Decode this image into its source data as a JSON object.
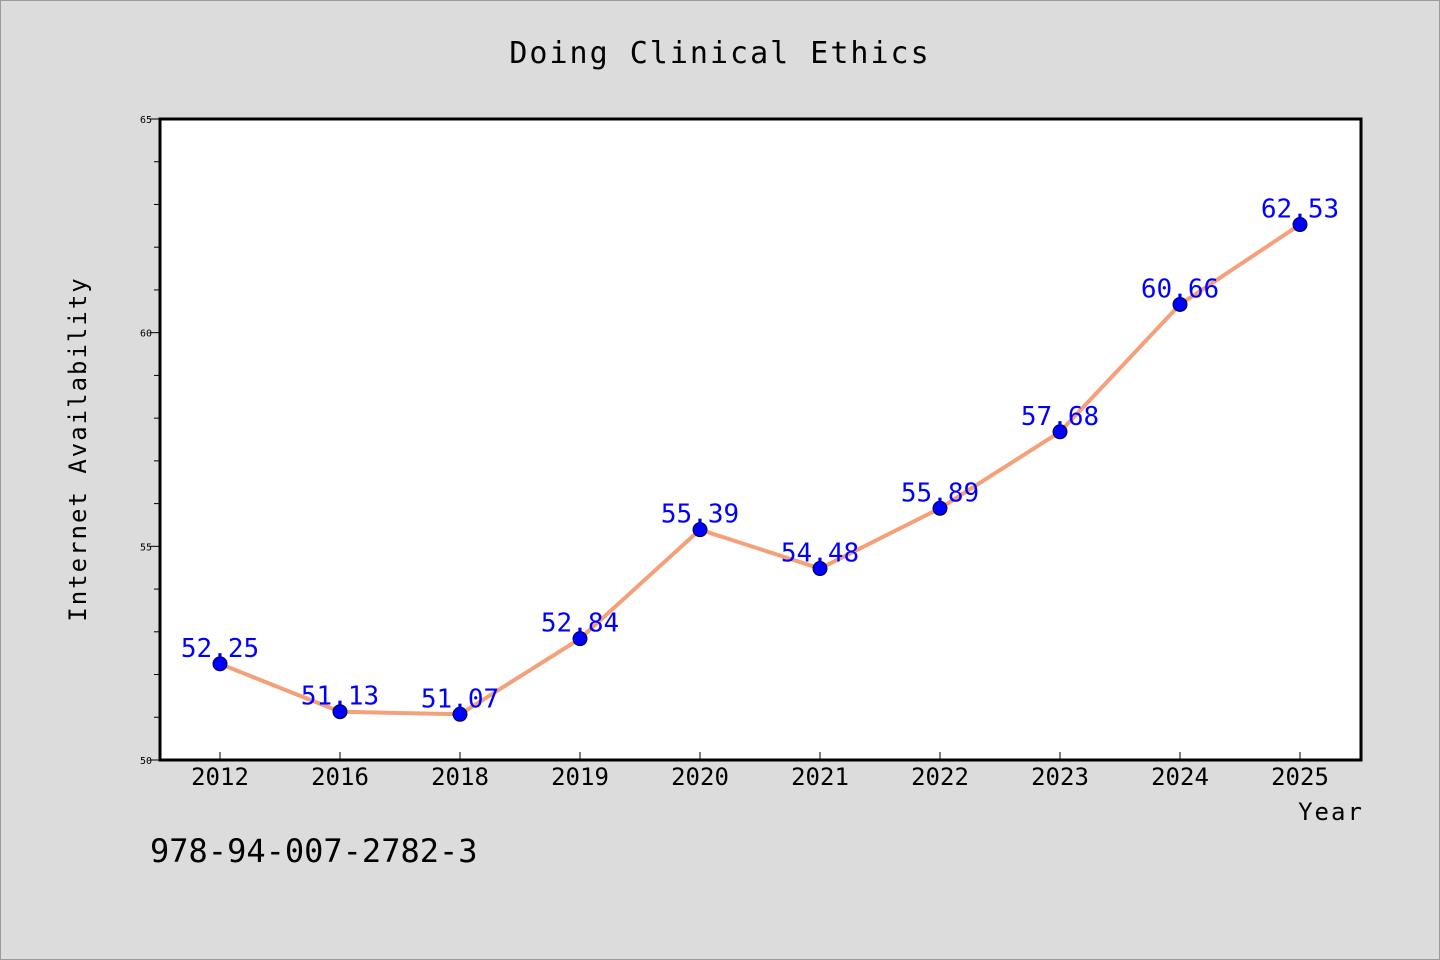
{
  "chart_data": {
    "type": "line",
    "title": "Doing Clinical Ethics",
    "xlabel": "Year",
    "ylabel": "Internet Availability",
    "categories": [
      "2012",
      "2016",
      "2018",
      "2019",
      "2020",
      "2021",
      "2022",
      "2023",
      "2024",
      "2025"
    ],
    "series": [
      {
        "values": [
          52.25,
          51.13,
          51.07,
          52.84,
          55.39,
          54.48,
          55.89,
          57.68,
          60.66,
          62.53
        ]
      }
    ],
    "data_labels": [
      "52.25",
      "51.13",
      "51.07",
      "52.84",
      "55.39",
      "54.48",
      "55.89",
      "57.68",
      "60.66",
      "62.53"
    ],
    "ylim": [
      50,
      65
    ],
    "yticks": [
      50,
      55,
      60,
      65
    ],
    "grid": false,
    "colors": {
      "line": "#f4a07a",
      "marker": "#0000ff",
      "label": "#0000ff",
      "plot_bg": "#ffffff",
      "page_bg": "#dcdcdc"
    }
  },
  "footer": {
    "text": "978-94-007-2782-3"
  }
}
